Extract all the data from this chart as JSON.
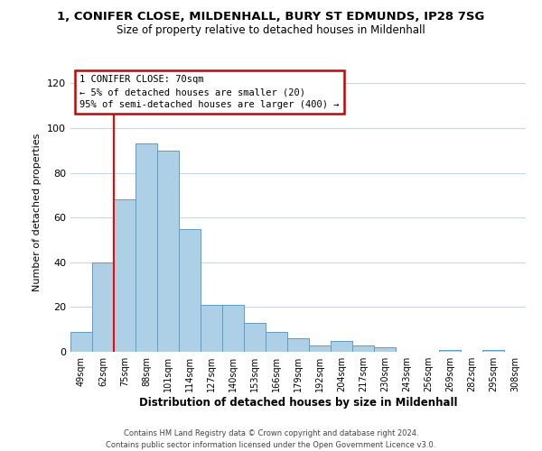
{
  "title": "1, CONIFER CLOSE, MILDENHALL, BURY ST EDMUNDS, IP28 7SG",
  "subtitle": "Size of property relative to detached houses in Mildenhall",
  "xlabel": "Distribution of detached houses by size in Mildenhall",
  "ylabel": "Number of detached properties",
  "bar_labels": [
    "49sqm",
    "62sqm",
    "75sqm",
    "88sqm",
    "101sqm",
    "114sqm",
    "127sqm",
    "140sqm",
    "153sqm",
    "166sqm",
    "179sqm",
    "192sqm",
    "204sqm",
    "217sqm",
    "230sqm",
    "243sqm",
    "256sqm",
    "269sqm",
    "282sqm",
    "295sqm",
    "308sqm"
  ],
  "bar_values": [
    9,
    40,
    68,
    93,
    90,
    55,
    21,
    21,
    13,
    9,
    6,
    3,
    5,
    3,
    2,
    0,
    0,
    1,
    0,
    1,
    0
  ],
  "bar_color": "#aed0e6",
  "bar_edge_color": "#5b9dca",
  "ylim": [
    0,
    125
  ],
  "yticks": [
    0,
    20,
    40,
    60,
    80,
    100,
    120
  ],
  "annotation_title": "1 CONIFER CLOSE: 70sqm",
  "annotation_line1": "← 5% of detached houses are smaller (20)",
  "annotation_line2": "95% of semi-detached houses are larger (400) →",
  "annotation_box_color": "#ffffff",
  "annotation_box_edge_color": "#cc0000",
  "footer_line1": "Contains HM Land Registry data © Crown copyright and database right 2024.",
  "footer_line2": "Contains public sector information licensed under the Open Government Licence v3.0.",
  "background_color": "#ffffff",
  "grid_color": "#c8d8e8"
}
